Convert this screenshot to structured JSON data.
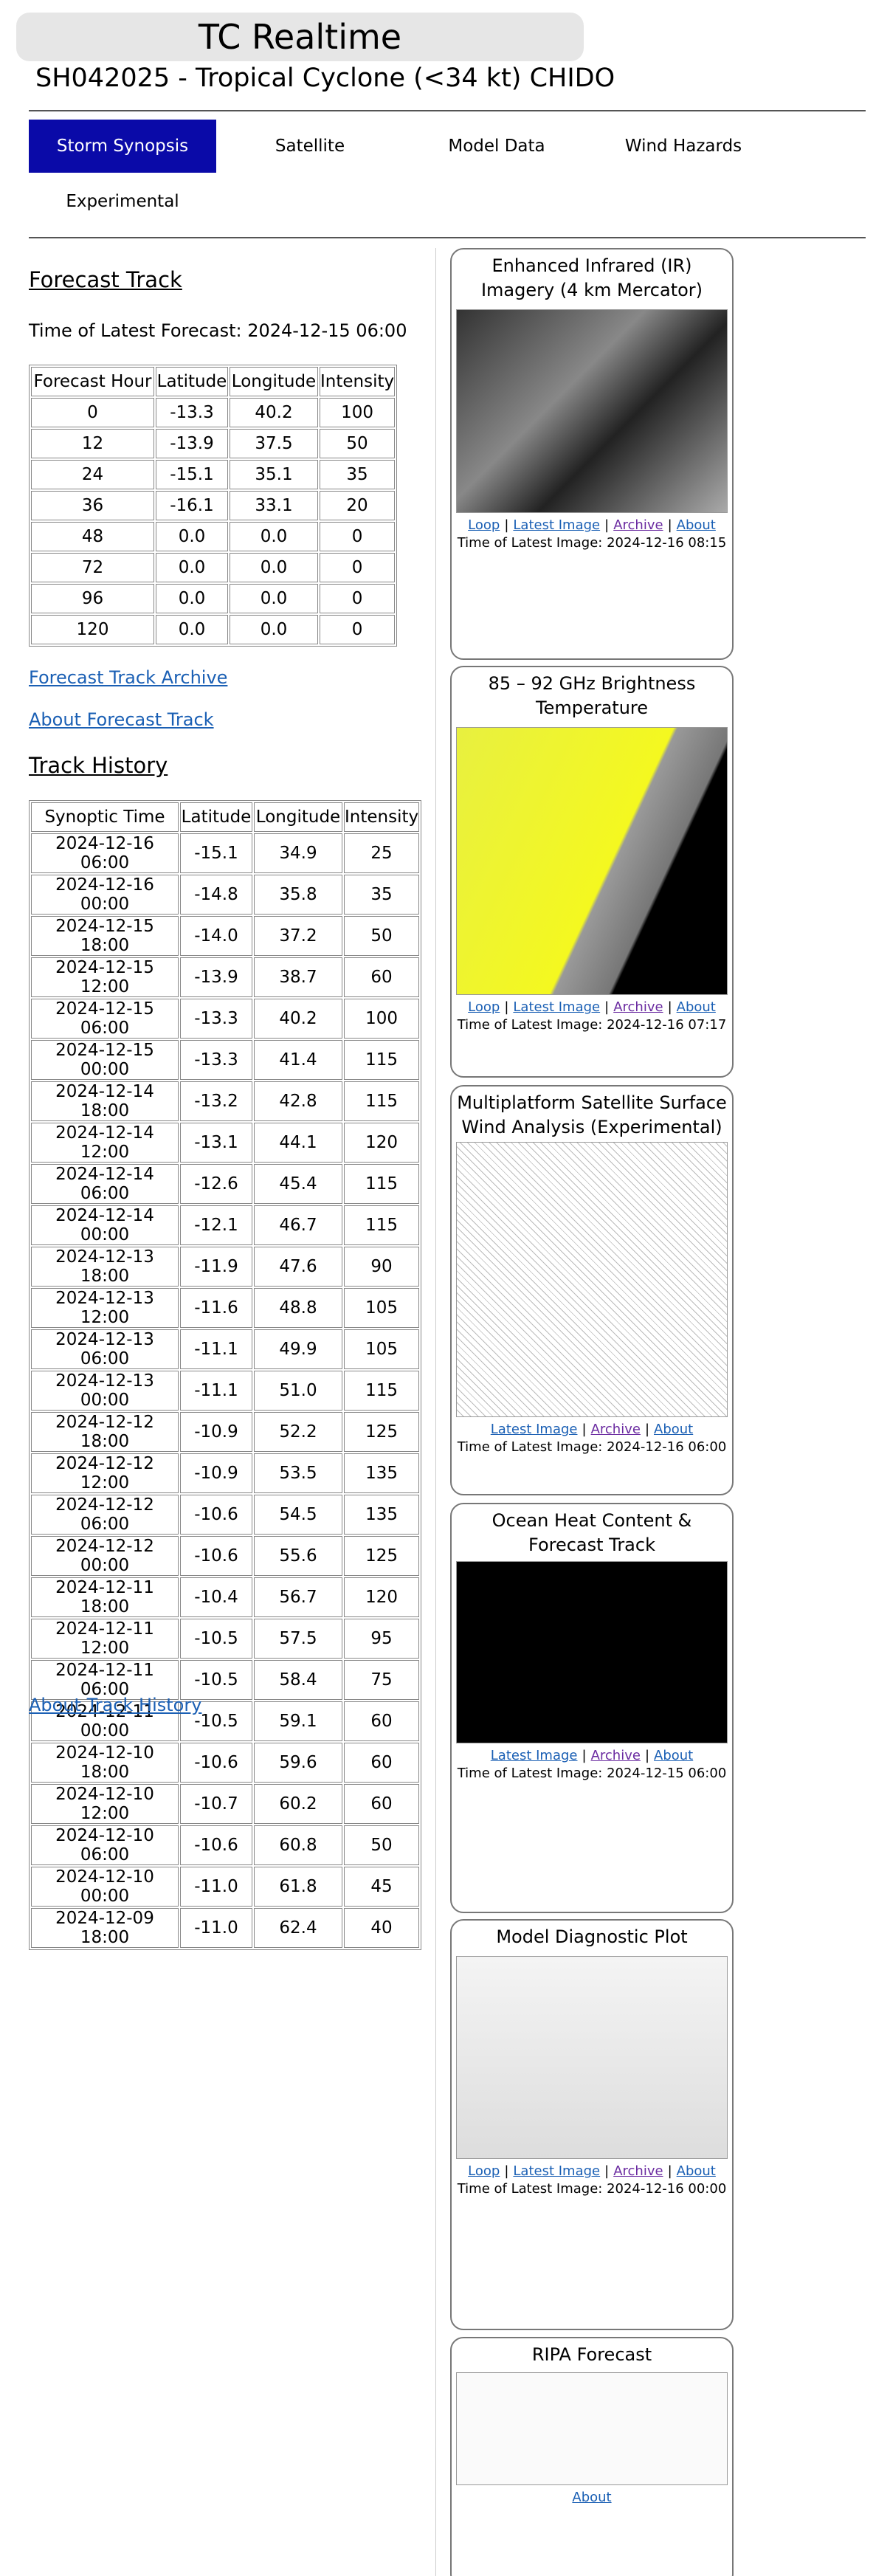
{
  "header": {
    "title": "TC Realtime",
    "subtitle": "SH042025 - Tropical Cyclone (<34 kt) CHIDO"
  },
  "nav": [
    "Storm Synopsis",
    "Satellite",
    "Model Data",
    "Wind Hazards",
    "Experimental"
  ],
  "forecast_track": {
    "heading": "Forecast Track",
    "latest": "Time of Latest Forecast: 2024-12-15 06:00",
    "columns": [
      "Forecast Hour",
      "Latitude",
      "Longitude",
      "Intensity"
    ],
    "rows": [
      [
        "0",
        "-13.3",
        "40.2",
        "100"
      ],
      [
        "12",
        "-13.9",
        "37.5",
        "50"
      ],
      [
        "24",
        "-15.1",
        "35.1",
        "35"
      ],
      [
        "36",
        "-16.1",
        "33.1",
        "20"
      ],
      [
        "48",
        "0.0",
        "0.0",
        "0"
      ],
      [
        "72",
        "0.0",
        "0.0",
        "0"
      ],
      [
        "96",
        "0.0",
        "0.0",
        "0"
      ],
      [
        "120",
        "0.0",
        "0.0",
        "0"
      ]
    ],
    "links": [
      "Forecast Track Archive",
      "About Forecast Track"
    ]
  },
  "track_history": {
    "heading": "Track History",
    "columns": [
      "Synoptic Time",
      "Latitude",
      "Longitude",
      "Intensity"
    ],
    "rows": [
      [
        "2024-12-16 06:00",
        "-15.1",
        "34.9",
        "25"
      ],
      [
        "2024-12-16 00:00",
        "-14.8",
        "35.8",
        "35"
      ],
      [
        "2024-12-15 18:00",
        "-14.0",
        "37.2",
        "50"
      ],
      [
        "2024-12-15 12:00",
        "-13.9",
        "38.7",
        "60"
      ],
      [
        "2024-12-15 06:00",
        "-13.3",
        "40.2",
        "100"
      ],
      [
        "2024-12-15 00:00",
        "-13.3",
        "41.4",
        "115"
      ],
      [
        "2024-12-14 18:00",
        "-13.2",
        "42.8",
        "115"
      ],
      [
        "2024-12-14 12:00",
        "-13.1",
        "44.1",
        "120"
      ],
      [
        "2024-12-14 06:00",
        "-12.6",
        "45.4",
        "115"
      ],
      [
        "2024-12-14 00:00",
        "-12.1",
        "46.7",
        "115"
      ],
      [
        "2024-12-13 18:00",
        "-11.9",
        "47.6",
        "90"
      ],
      [
        "2024-12-13 12:00",
        "-11.6",
        "48.8",
        "105"
      ],
      [
        "2024-12-13 06:00",
        "-11.1",
        "49.9",
        "105"
      ],
      [
        "2024-12-13 00:00",
        "-11.1",
        "51.0",
        "115"
      ],
      [
        "2024-12-12 18:00",
        "-10.9",
        "52.2",
        "125"
      ],
      [
        "2024-12-12 12:00",
        "-10.9",
        "53.5",
        "135"
      ],
      [
        "2024-12-12 06:00",
        "-10.6",
        "54.5",
        "135"
      ],
      [
        "2024-12-12 00:00",
        "-10.6",
        "55.6",
        "125"
      ],
      [
        "2024-12-11 18:00",
        "-10.4",
        "56.7",
        "120"
      ],
      [
        "2024-12-11 12:00",
        "-10.5",
        "57.5",
        "95"
      ],
      [
        "2024-12-11 06:00",
        "-10.5",
        "58.4",
        "75"
      ],
      [
        "2024-12-11 00:00",
        "-10.5",
        "59.1",
        "60"
      ],
      [
        "2024-12-10 18:00",
        "-10.6",
        "59.6",
        "60"
      ],
      [
        "2024-12-10 12:00",
        "-10.7",
        "60.2",
        "60"
      ],
      [
        "2024-12-10 06:00",
        "-10.6",
        "60.8",
        "50"
      ],
      [
        "2024-12-10 00:00",
        "-11.0",
        "61.8",
        "45"
      ],
      [
        "2024-12-09 18:00",
        "-11.0",
        "62.4",
        "40"
      ]
    ],
    "link": "About Track History"
  },
  "separator": "|",
  "panels": [
    {
      "title": "Enhanced Infrared (IR) Imagery (4 km Mercator)",
      "links": [
        "Loop",
        "Latest Image",
        "Archive",
        "About"
      ],
      "time": "Time of Latest Image: 2024-12-16 08:15"
    },
    {
      "title": "85 – 92 GHz Brightness Temperature",
      "links": [
        "Loop",
        "Latest Image",
        "Archive",
        "About"
      ],
      "time": "Time of Latest Image: 2024-12-16 07:17"
    },
    {
      "title": "Multiplatform Satellite Surface Wind Analysis (Experimental)",
      "links": [
        "Latest Image",
        "Archive",
        "About"
      ],
      "time": "Time of Latest Image: 2024-12-16 06:00"
    },
    {
      "title": "Ocean Heat Content & Forecast Track",
      "links": [
        "Latest Image",
        "Archive",
        "About"
      ],
      "time": "Time of Latest Image: 2024-12-15 06:00"
    },
    {
      "title": "Model Diagnostic Plot",
      "links": [
        "Loop",
        "Latest Image",
        "Archive",
        "About"
      ],
      "time": "Time of Latest Image: 2024-12-16 00:00"
    },
    {
      "title": "RIPA Forecast",
      "links": [
        "About"
      ]
    }
  ]
}
